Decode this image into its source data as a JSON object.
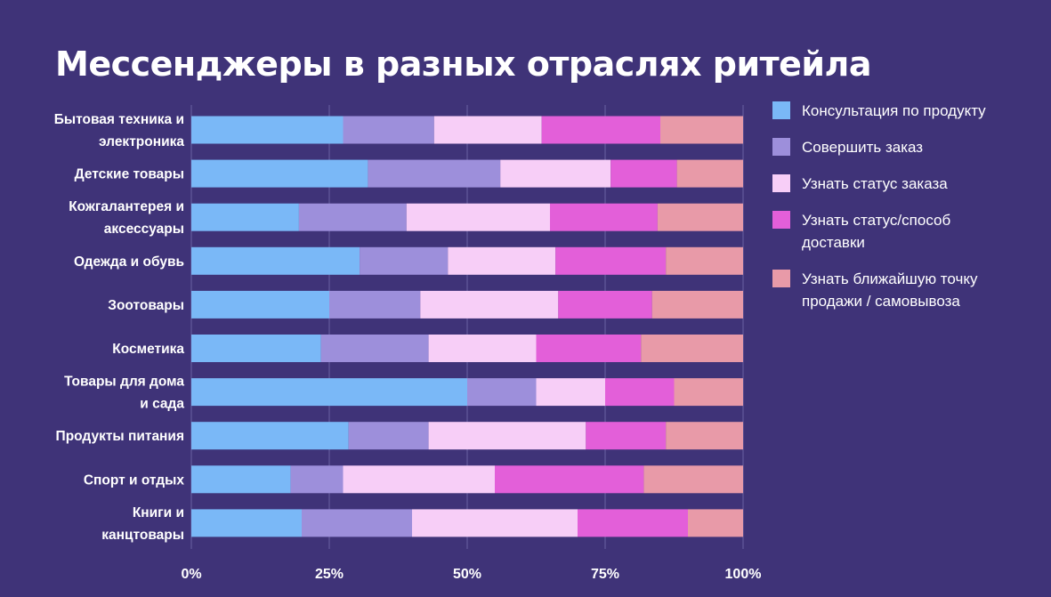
{
  "chart_data": {
    "type": "bar",
    "orientation": "horizontal",
    "stacked": true,
    "title": "Мессенджеры в разных отраслях ритейла",
    "categories": [
      [
        "Бытовая техника и",
        "электроника"
      ],
      [
        "Детские товары"
      ],
      [
        "Кожгалантерея и",
        "аксессуары"
      ],
      [
        "Одежда и обувь"
      ],
      [
        "Зоотовары"
      ],
      [
        "Косметика"
      ],
      [
        "Товары для дома",
        "и сада"
      ],
      [
        "Продукты питания"
      ],
      [
        "Спорт и отдых"
      ],
      [
        "Книги и",
        "канцтовары"
      ]
    ],
    "series": [
      {
        "name": "Консультация по продукту",
        "color": "#7ab8f7",
        "values": [
          27.5,
          32,
          19.5,
          30.5,
          25,
          23.5,
          50,
          28.5,
          18,
          20
        ]
      },
      {
        "name": "Совершить заказ",
        "color": "#9d8fdb",
        "values": [
          16.5,
          24,
          19.5,
          16,
          16.5,
          19.5,
          12.5,
          14.5,
          9.5,
          20
        ]
      },
      {
        "name": "Узнать статус заказа",
        "color": "#f7cef7",
        "values": [
          19.5,
          20,
          26,
          19.5,
          25,
          19.5,
          12.5,
          28.5,
          27.5,
          30
        ]
      },
      {
        "name": "Узнать статус/способ доставки",
        "color": "#e35fd9",
        "values": [
          21.5,
          12,
          19.5,
          20,
          17,
          19,
          12.5,
          14.5,
          27,
          20
        ]
      },
      {
        "name": "Узнать ближайшую точку продажи / самовывоза",
        "color": "#e89aa8",
        "values": [
          15,
          12,
          15.5,
          14,
          16.5,
          18.5,
          12.5,
          14,
          18,
          10
        ]
      }
    ],
    "xlim": [
      0,
      100
    ],
    "xticks": [
      "0%",
      "25%",
      "50%",
      "75%",
      "100%"
    ],
    "xlabel": "",
    "ylabel": "",
    "grid": true,
    "legend_position": "right"
  },
  "legend": [
    {
      "lines": [
        "Консультация по продукту"
      ],
      "color": "#7ab8f7"
    },
    {
      "lines": [
        "Совершить заказ"
      ],
      "color": "#9d8fdb"
    },
    {
      "lines": [
        "Узнать статус заказа"
      ],
      "color": "#f7cef7"
    },
    {
      "lines": [
        "Узнать статус/способ",
        "доставки"
      ],
      "color": "#e35fd9"
    },
    {
      "lines": [
        "Узнать ближайшую точку",
        "продажи / самовывоза"
      ],
      "color": "#e89aa8"
    }
  ]
}
